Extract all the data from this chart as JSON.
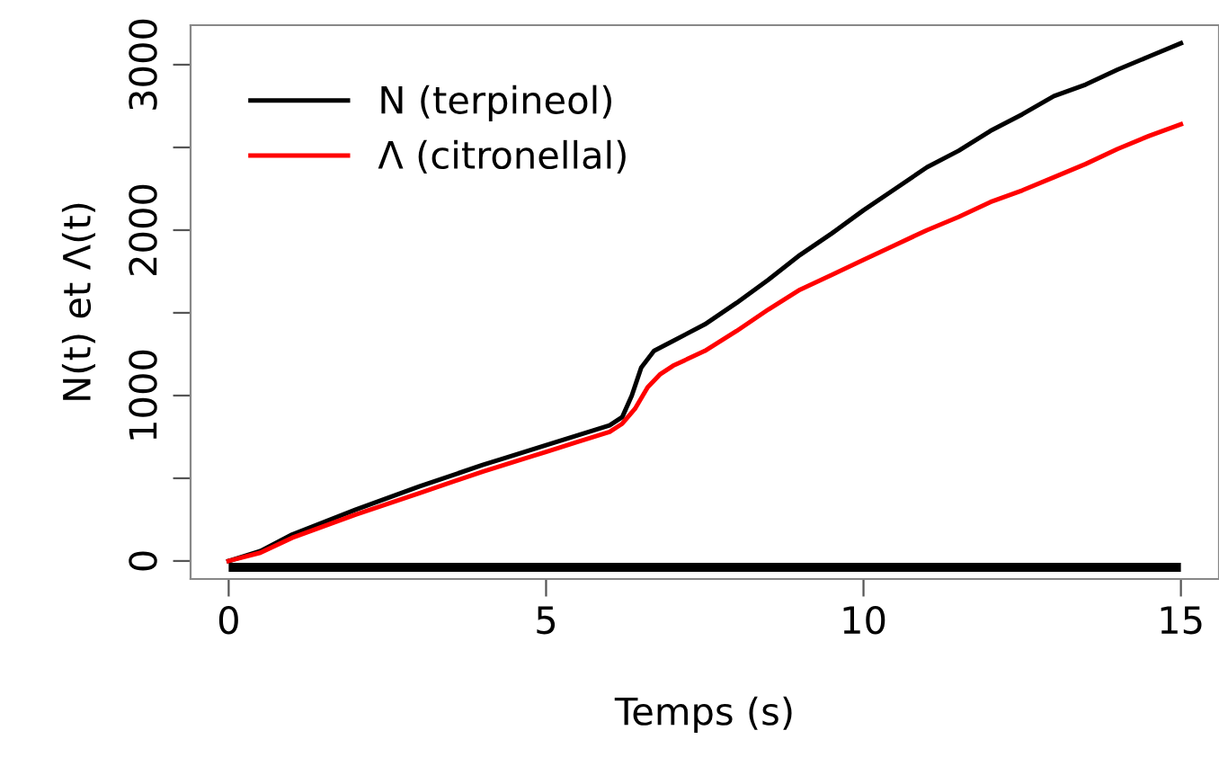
{
  "chart_data": {
    "type": "line",
    "xlabel": "Temps (s)",
    "ylabel": "N(t) et Λ(t)",
    "xlim": [
      -0.6,
      15.6
    ],
    "ylim": [
      -109,
      3239
    ],
    "xticks": [
      0,
      5,
      10,
      15
    ],
    "yticks": [
      0,
      {
        "value": 500,
        "label": null
      },
      1000,
      {
        "value": 1500,
        "label": null
      },
      2000,
      {
        "value": 2500,
        "label": null
      },
      3000
    ],
    "grid": false,
    "legend": "top left",
    "marker": "none",
    "line_style": "solid",
    "series": [
      {
        "name": "N (terpineol)",
        "color": "#000000",
        "x": [
          0,
          0.5,
          1,
          2,
          3,
          4,
          5,
          5.5,
          6,
          6.2,
          6.35,
          6.5,
          6.7,
          7,
          7.5,
          8,
          8.5,
          9,
          9.5,
          10,
          10.5,
          11,
          11.5,
          12,
          12.5,
          13,
          13.5,
          14,
          14.5,
          15
        ],
        "values": [
          0,
          60,
          160,
          310,
          450,
          580,
          700,
          760,
          820,
          870,
          1000,
          1170,
          1270,
          1330,
          1430,
          1560,
          1700,
          1850,
          1980,
          2120,
          2250,
          2380,
          2480,
          2600,
          2700,
          2810,
          2880,
          2970,
          3050,
          3130
        ]
      },
      {
        "name": "Λ (citronellal)",
        "color": "#ff0000",
        "x": [
          0,
          0.5,
          1,
          2,
          3,
          4,
          5,
          5.5,
          6,
          6.2,
          6.4,
          6.6,
          6.8,
          7,
          7.5,
          8,
          8.5,
          9,
          9.5,
          10,
          10.5,
          11,
          11.5,
          12,
          12.5,
          13,
          13.5,
          14,
          14.5,
          15
        ],
        "values": [
          0,
          50,
          140,
          280,
          410,
          540,
          660,
          720,
          780,
          830,
          920,
          1050,
          1130,
          1180,
          1270,
          1390,
          1520,
          1640,
          1730,
          1820,
          1910,
          2000,
          2080,
          2170,
          2240,
          2320,
          2400,
          2490,
          2570,
          2640
        ]
      }
    ]
  }
}
